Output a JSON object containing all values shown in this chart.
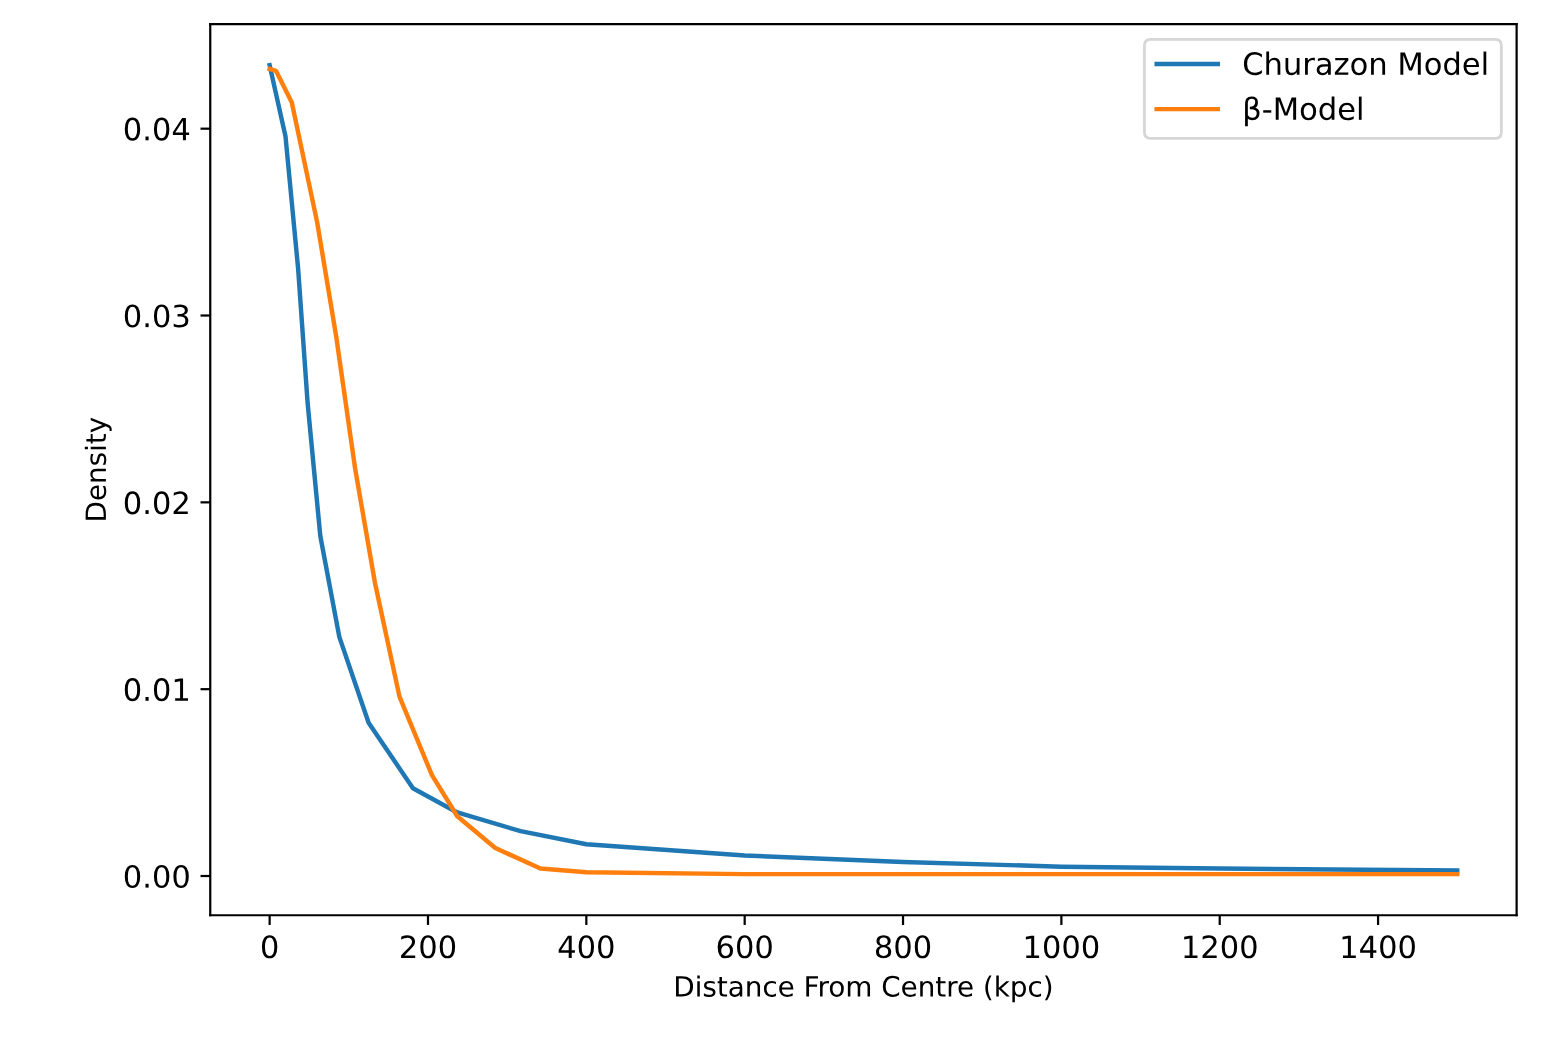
{
  "chart_data": {
    "type": "line",
    "xlabel": "Distance From Centre (kpc)",
    "ylabel": "Density",
    "xlim": [
      -75,
      1575
    ],
    "xticks": [
      0,
      200,
      400,
      600,
      800,
      1000,
      1200,
      1400
    ],
    "ylim": [
      -0.0021,
      0.0456
    ],
    "yticks": [
      {
        "value": 0,
        "label": "0.00"
      },
      {
        "value": 0.01,
        "label": "0.01"
      },
      {
        "value": 0.02,
        "label": "0.02"
      },
      {
        "value": 0.03,
        "label": "0.03"
      },
      {
        "value": 0.04,
        "label": "0.04"
      }
    ],
    "legend": "top right",
    "grid": false,
    "line_style": "solid",
    "marker": "none",
    "series": [
      {
        "name": "Churazon Model",
        "color": "#1f77b4",
        "x": [
          0,
          20,
          36,
          48,
          64,
          88,
          125,
          181,
          237,
          317,
          400,
          600,
          800,
          1000,
          1200,
          1500
        ],
        "values": [
          0.0434,
          0.0396,
          0.0325,
          0.0253,
          0.0182,
          0.0128,
          0.0082,
          0.0047,
          0.0034,
          0.0024,
          0.0017,
          0.0011,
          0.00075,
          0.0005,
          0.0004,
          0.0003
        ]
      },
      {
        "name": "β-Model",
        "color": "#ff7f0e",
        "x": [
          0,
          8,
          28,
          60,
          84,
          108,
          133,
          164,
          205,
          237,
          285,
          342,
          400,
          600,
          800,
          1000,
          1200,
          1500
        ],
        "values": [
          0.0432,
          0.0431,
          0.0414,
          0.035,
          0.0289,
          0.0218,
          0.0157,
          0.0096,
          0.0054,
          0.0032,
          0.0015,
          0.0004,
          0.0002,
          0.0001,
          0.0001,
          0.0001,
          0.0001,
          0.0001
        ]
      }
    ]
  }
}
